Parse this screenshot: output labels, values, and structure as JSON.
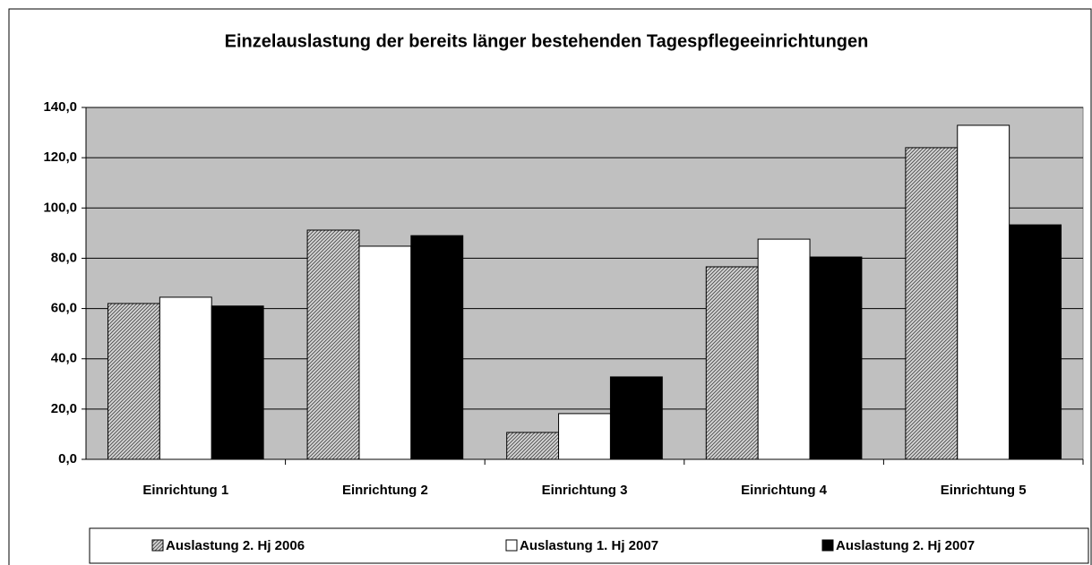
{
  "chart_data": {
    "type": "bar",
    "title": "Einzelauslastung der bereits länger bestehenden Tagespflegeeinrichtungen",
    "categories": [
      "Einrichtung 1",
      "Einrichtung 2",
      "Einrichtung 3",
      "Einrichtung 4",
      "Einrichtung 5"
    ],
    "series": [
      {
        "name": "Auslastung 2. Hj 2006",
        "color": "#a0a0a0",
        "pattern": "hatch",
        "values": [
          62.0,
          91.2,
          10.7,
          76.6,
          124.0
        ]
      },
      {
        "name": "Auslastung 1. Hj 2007",
        "color": "#ffffff",
        "values": [
          64.5,
          84.8,
          18.2,
          87.6,
          132.9
        ]
      },
      {
        "name": "Auslastung 2. Hj 2007",
        "color": "#000000",
        "values": [
          61.0,
          89.0,
          32.8,
          80.5,
          93.3
        ]
      }
    ],
    "ylim": [
      0,
      140
    ],
    "yticks": [
      {
        "value": 0,
        "label": "0,0"
      },
      {
        "value": 20,
        "label": "20,0"
      },
      {
        "value": 40,
        "label": "40,0"
      },
      {
        "value": 60,
        "label": "60,0"
      },
      {
        "value": 80,
        "label": "80,0"
      },
      {
        "value": 100,
        "label": "100,0"
      },
      {
        "value": 120,
        "label": "120,0"
      },
      {
        "value": 140,
        "label": "140,0"
      }
    ],
    "grid": true,
    "plot_background": "#c0c0c0",
    "legend": "bottom"
  }
}
